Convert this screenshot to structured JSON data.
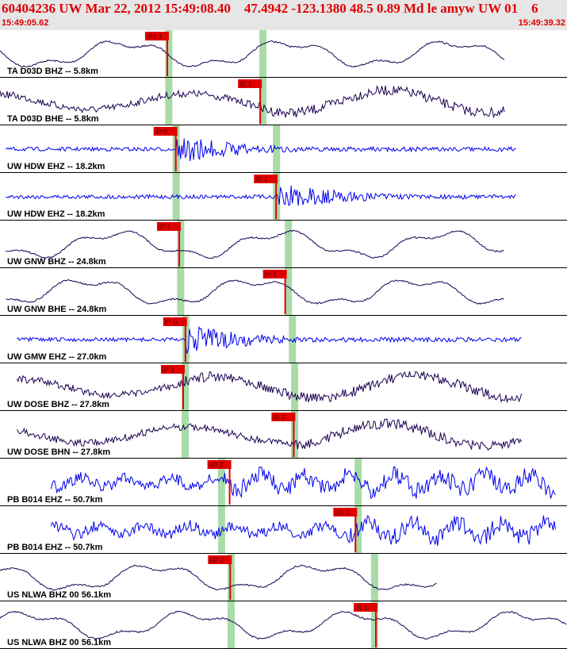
{
  "header": {
    "title": "60404236 UW Mar 22, 2012 15:49:08.40    47.4942 -123.1380 48.5 0.89 Md le amyw UW 01    6",
    "start_time": "15:49:05.62",
    "end_time": "15:49:39.32"
  },
  "colors": {
    "header_text": "#e00000",
    "pick": "#e00000",
    "window": "#a8dba8",
    "trace_dark": "#1b0050",
    "trace_blue": "#0000ee"
  },
  "channels": [
    {
      "label": "TA D03D BHZ -- 5.8km",
      "color": "dark",
      "style": "smooth",
      "start": 0.0,
      "end": 0.89,
      "pick_text": "iPc 1",
      "pick": 0.295,
      "s_window": 0.463,
      "p_window": 0.297
    },
    {
      "label": "TA D03D BHE -- 5.8km",
      "color": "dark",
      "style": "noisy",
      "start": 0.0,
      "end": 0.89,
      "pick_text": "iS 1",
      "pick": 0.459,
      "s_window": 0.463,
      "p_window": 0.297
    },
    {
      "label": "UW HDW EHZ -- 18.2km",
      "color": "blue",
      "style": "hf",
      "start": 0.01,
      "end": 0.91,
      "pick_text": "iP 0",
      "pick": 0.31,
      "s_window": 0.487,
      "p_window": 0.31
    },
    {
      "label": "UW HDW EHZ -- 18.2km",
      "color": "blue",
      "style": "hf",
      "start": 0.01,
      "end": 0.91,
      "pick_text": "iS 1",
      "pick": 0.487,
      "s_window": 0.487,
      "p_window": 0.31
    },
    {
      "label": "UW GNW BHZ -- 24.8km",
      "color": "dark",
      "style": "smooth",
      "start": 0.01,
      "end": 0.89,
      "pick_text": "iP 1",
      "pick": 0.316,
      "s_window": 0.508,
      "p_window": 0.318
    },
    {
      "label": "UW GNW BHE -- 24.8km",
      "color": "dark",
      "style": "smooth",
      "start": 0.01,
      "end": 0.89,
      "pick_text": "iS 1",
      "pick": 0.503,
      "s_window": 0.508,
      "p_window": 0.318
    },
    {
      "label": "UW GMW EHZ -- 27.0km",
      "color": "blue",
      "style": "hf",
      "start": 0.03,
      "end": 0.92,
      "pick_text": "iP 0",
      "pick": 0.327,
      "s_window": 0.515,
      "p_window": 0.327
    },
    {
      "label": "UW DOSE BHZ -- 27.8km",
      "color": "dark",
      "style": "noisy",
      "start": 0.03,
      "end": 0.92,
      "pick_text": "iP 1",
      "pick": 0.323,
      "s_window": 0.519,
      "p_window": 0.326
    },
    {
      "label": "UW DOSE BHN -- 27.8km",
      "color": "dark",
      "style": "noisy",
      "start": 0.03,
      "end": 0.92,
      "pick_text": "iS 1",
      "pick": 0.518,
      "s_window": 0.519,
      "p_window": 0.326
    },
    {
      "label": "PB B014 EHZ -- 50.7km",
      "color": "blue",
      "style": "bigblue",
      "start": 0.09,
      "end": 0.98,
      "pick_text": "eP 2",
      "pick": 0.405,
      "s_window": 0.631,
      "p_window": 0.39
    },
    {
      "label": "PB B014 EHZ -- 50.7km",
      "color": "blue",
      "style": "bigblue",
      "start": 0.09,
      "end": 0.98,
      "pick_text": "eS 1",
      "pick": 0.627,
      "s_window": 0.631,
      "p_window": 0.39
    },
    {
      "label": "US NLWA BHZ 00 56.1km",
      "color": "dark",
      "style": "smooth",
      "start": 0.0,
      "end": 0.77,
      "pick_text": "eP 2",
      "pick": 0.406,
      "s_window": 0.66,
      "p_window": 0.407
    },
    {
      "label": "US NLWA BHZ 00 56.1km",
      "color": "dark",
      "style": "smooth",
      "start": 0.0,
      "end": 1.0,
      "pick_text": "iS 1",
      "pick": 0.663,
      "s_window": 0.66,
      "p_window": 0.407
    }
  ]
}
